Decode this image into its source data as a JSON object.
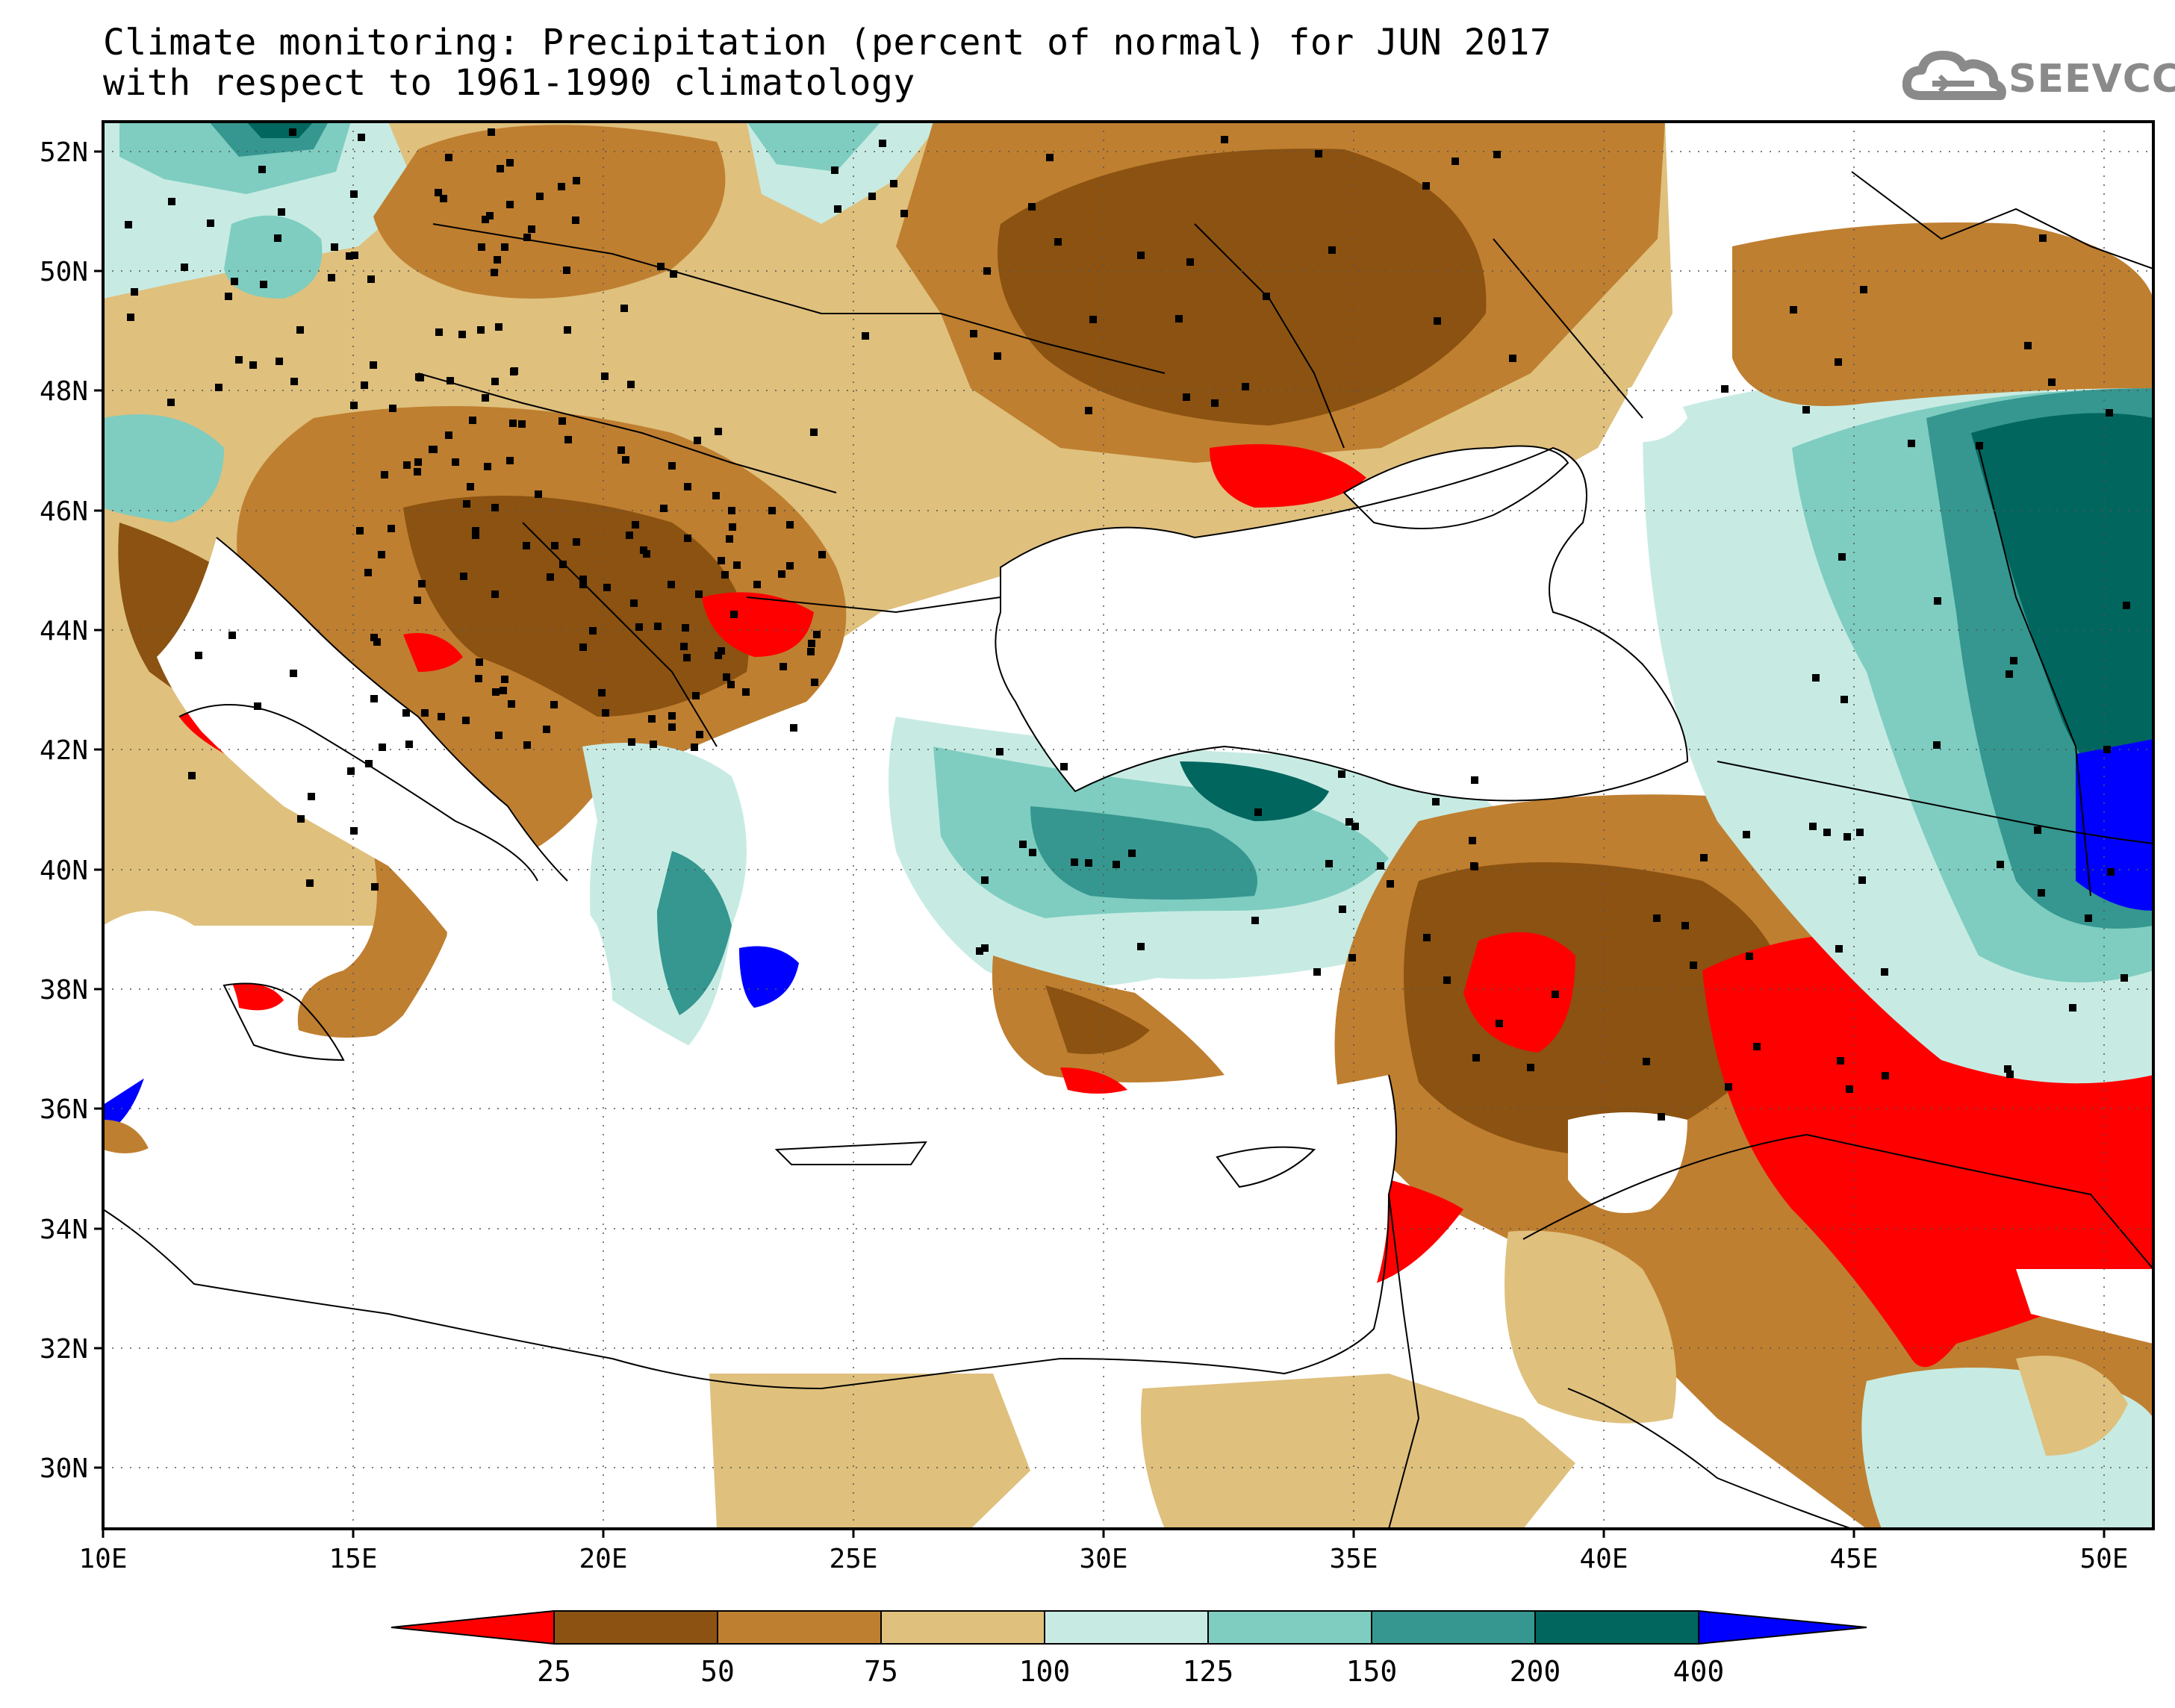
{
  "title": {
    "line1": "Climate monitoring: Precipitation (percent of normal) for JUN 2017",
    "line2": "with respect to 1961-1990 climatology"
  },
  "logo": {
    "text": "SEEVCCC",
    "icon": "cloud-icon"
  },
  "map": {
    "lat_labels": [
      "52N",
      "50N",
      "48N",
      "46N",
      "44N",
      "42N",
      "40N",
      "38N",
      "36N",
      "34N",
      "32N",
      "30N"
    ],
    "lon_labels": [
      "10E",
      "15E",
      "20E",
      "25E",
      "30E",
      "35E",
      "40E",
      "45E",
      "50E"
    ],
    "lon_range": [
      10,
      51
    ],
    "lat_range": [
      29,
      52.5
    ],
    "grid": "dotted",
    "station_markers": "black squares"
  },
  "colorbar": {
    "ticks": [
      "25",
      "50",
      "75",
      "100",
      "125",
      "150",
      "200",
      "400"
    ],
    "colors": {
      "lt25": "#ff0000",
      "25-50": "#8b5211",
      "50-75": "#bf7f30",
      "75-100": "#dfc07d",
      "100-125": "#c7ebe3",
      "125-150": "#7ecdc0",
      "150-200": "#35978f",
      "200-400": "#01665e",
      "gt400": "#0000ff"
    }
  }
}
